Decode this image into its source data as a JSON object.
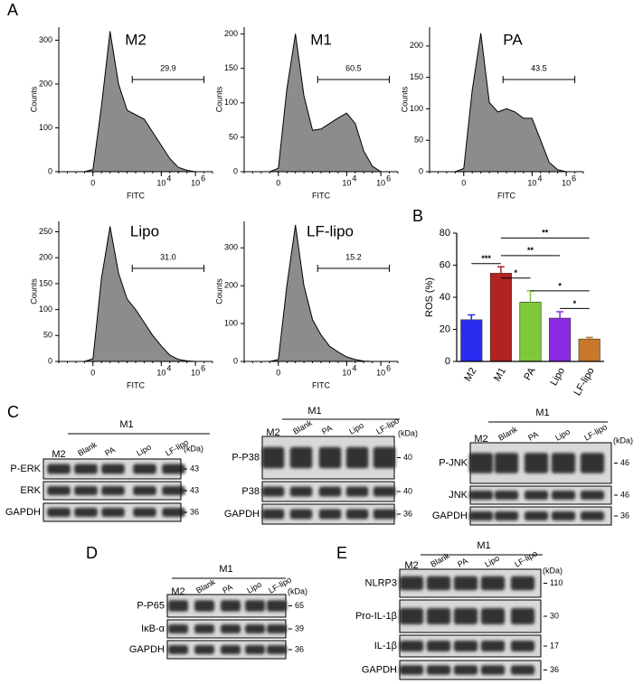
{
  "panel_labels": [
    "A",
    "B",
    "C",
    "D",
    "E"
  ],
  "chart_data": [
    {
      "type": "area",
      "title": "M2",
      "x_label": "FITC",
      "y_label": "Counts",
      "color": "#8c8c8c",
      "x": [
        -0.5,
        0,
        0.5,
        1,
        1.5,
        2,
        2.5,
        3,
        3.5,
        4,
        4.5,
        5,
        5.5,
        6
      ],
      "values": [
        0,
        5,
        150,
        320,
        200,
        140,
        130,
        120,
        90,
        60,
        30,
        10,
        3,
        0
      ],
      "xlim": [
        -2,
        7
      ],
      "ylim": [
        0,
        330
      ],
      "yticks": [
        0,
        100,
        200,
        300
      ],
      "xticks": [
        {
          "value": 0,
          "label": "0"
        },
        {
          "value": 4,
          "label": "10",
          "exponent": "4"
        },
        {
          "value": 6,
          "label": "10",
          "exponent": "6"
        }
      ],
      "gate": {
        "range": [
          2.3,
          6.5
        ],
        "label": "29.9"
      }
    },
    {
      "type": "area",
      "title": "M1",
      "x_label": "FITC",
      "y_label": "Counts",
      "color": "#8c8c8c",
      "x": [
        -0.5,
        0,
        0.5,
        1,
        1.5,
        2,
        2.5,
        3,
        3.5,
        4,
        4.5,
        5,
        5.5,
        6
      ],
      "values": [
        0,
        5,
        120,
        200,
        110,
        60,
        62,
        70,
        78,
        85,
        70,
        30,
        8,
        0
      ],
      "xlim": [
        -2,
        7
      ],
      "ylim": [
        0,
        210
      ],
      "yticks": [
        0,
        50,
        100,
        150,
        200
      ],
      "xticks": [
        {
          "value": 0,
          "label": "0"
        },
        {
          "value": 4,
          "label": "10",
          "exponent": "4"
        },
        {
          "value": 6,
          "label": "10",
          "exponent": "6"
        }
      ],
      "gate": {
        "range": [
          2.3,
          6.5
        ],
        "label": "60.5"
      }
    },
    {
      "type": "area",
      "title": "PA",
      "x_label": "FITC",
      "y_label": "Counts",
      "color": "#8c8c8c",
      "x": [
        -0.5,
        0,
        0.5,
        1,
        1.5,
        2,
        2.5,
        3,
        3.5,
        4,
        4.5,
        5,
        5.5,
        6
      ],
      "values": [
        0,
        5,
        130,
        220,
        110,
        95,
        100,
        95,
        85,
        85,
        50,
        15,
        3,
        0
      ],
      "xlim": [
        -2,
        7
      ],
      "ylim": [
        0,
        230
      ],
      "yticks": [
        0,
        50,
        100,
        150,
        200
      ],
      "xticks": [
        {
          "value": 0,
          "label": "0"
        },
        {
          "value": 4,
          "label": "10",
          "exponent": "4"
        },
        {
          "value": 6,
          "label": "10",
          "exponent": "6"
        }
      ],
      "gate": {
        "range": [
          2.3,
          6.5
        ],
        "label": "43.5"
      }
    },
    {
      "type": "area",
      "title": "Lipo",
      "x_label": "FITC",
      "y_label": "Counts",
      "color": "#8c8c8c",
      "x": [
        -0.5,
        0,
        0.5,
        1,
        1.5,
        2,
        2.5,
        3,
        3.5,
        4,
        4.5,
        5,
        5.5,
        6
      ],
      "values": [
        0,
        5,
        160,
        260,
        170,
        120,
        100,
        75,
        50,
        30,
        12,
        4,
        1,
        0
      ],
      "xlim": [
        -2,
        7
      ],
      "ylim": [
        0,
        270
      ],
      "yticks": [
        0,
        50,
        100,
        150,
        200,
        250
      ],
      "xticks": [
        {
          "value": 0,
          "label": "0"
        },
        {
          "value": 4,
          "label": "10",
          "exponent": "4"
        },
        {
          "value": 6,
          "label": "10",
          "exponent": "6"
        }
      ],
      "gate": {
        "range": [
          2.3,
          6.5
        ],
        "label": "31.0"
      }
    },
    {
      "type": "area",
      "title": "LF-lipo",
      "x_label": "FITC",
      "y_label": "Counts",
      "color": "#8c8c8c",
      "x": [
        -0.5,
        0,
        0.5,
        1,
        1.5,
        2,
        2.5,
        3,
        3.5,
        4,
        4.5,
        5,
        5.5,
        6
      ],
      "values": [
        0,
        5,
        200,
        360,
        200,
        110,
        70,
        40,
        25,
        12,
        5,
        1,
        0,
        0
      ],
      "xlim": [
        -2,
        7
      ],
      "ylim": [
        0,
        370
      ],
      "yticks": [
        0,
        100,
        200,
        300
      ],
      "xticks": [
        {
          "value": 0,
          "label": "0"
        },
        {
          "value": 4,
          "label": "10",
          "exponent": "4"
        },
        {
          "value": 6,
          "label": "10",
          "exponent": "6"
        }
      ],
      "gate": {
        "range": [
          2.3,
          6.5
        ],
        "label": "15.2"
      }
    },
    {
      "type": "bar",
      "y_label": "ROS (%)",
      "categories": [
        "M2",
        "M1",
        "PA",
        "Lipo",
        "LF-lipo"
      ],
      "values": [
        26,
        55,
        37,
        27,
        14
      ],
      "errors": [
        3,
        4,
        7,
        4,
        1
      ],
      "colors": [
        "#2b2bf0",
        "#b22222",
        "#7ec83a",
        "#8a2be2",
        "#c8782a"
      ],
      "ylim": [
        0,
        80
      ],
      "yticks": [
        0,
        20,
        40,
        60,
        80
      ],
      "significance": [
        {
          "from": 0,
          "to": 1,
          "y": 61,
          "label": "***"
        },
        {
          "from": 1,
          "to": 2,
          "y": 52,
          "label": "*"
        },
        {
          "from": 1,
          "to": 3,
          "y": 66,
          "label": "**"
        },
        {
          "from": 1,
          "to": 4,
          "y": 77,
          "label": "**"
        },
        {
          "from": 2,
          "to": 4,
          "y": 44,
          "label": "*"
        },
        {
          "from": 3,
          "to": 4,
          "y": 33,
          "label": "*"
        }
      ]
    }
  ],
  "blots": [
    {
      "header": "M1",
      "lanes": [
        "M2",
        "Blank",
        "PA",
        "Lipo",
        "LF-lipo"
      ],
      "unit": "(kDa)",
      "rows": [
        {
          "label": "P-ERK",
          "kda": 43
        },
        {
          "label": "ERK",
          "kda": 43
        },
        {
          "label": "GAPDH",
          "kda": 36
        }
      ]
    },
    {
      "header": "M1",
      "lanes": [
        "M2",
        "Blank",
        "PA",
        "Lipo",
        "LF-lipo"
      ],
      "unit": "(kDa)",
      "rows": [
        {
          "label": "P-P38",
          "kda": 40
        },
        {
          "label": "P38",
          "kda": 40
        },
        {
          "label": "GAPDH",
          "kda": 36
        }
      ]
    },
    {
      "header": "M1",
      "lanes": [
        "M2",
        "Blank",
        "PA",
        "Lipo",
        "LF-lipo"
      ],
      "unit": "(kDa)",
      "rows": [
        {
          "label": "P-JNK",
          "kda": 46
        },
        {
          "label": "JNK",
          "kda": 46
        },
        {
          "label": "GAPDH",
          "kda": 36
        }
      ]
    },
    {
      "header": "M1",
      "lanes": [
        "M2",
        "Blank",
        "PA",
        "Lipo",
        "LF-lipo"
      ],
      "unit": "(kDa)",
      "rows": [
        {
          "label": "P-P65",
          "kda": 65
        },
        {
          "label": "IκB-α",
          "kda": 39
        },
        {
          "label": "GAPDH",
          "kda": 36
        }
      ]
    },
    {
      "header": "M1",
      "lanes": [
        "M2",
        "Blank",
        "PA",
        "Lipo",
        "LF-lipo"
      ],
      "unit": "(kDa)",
      "rows": [
        {
          "label": "NLRP3",
          "kda": 110
        },
        {
          "label": "Pro-IL-1β",
          "kda": 30
        },
        {
          "label": "IL-1β",
          "kda": 17
        },
        {
          "label": "GAPDH",
          "kda": 36
        }
      ]
    }
  ]
}
